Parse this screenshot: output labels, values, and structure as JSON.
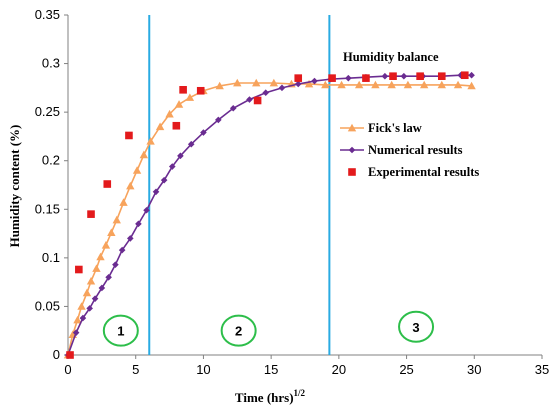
{
  "chart_data": {
    "type": "line",
    "xlabel": "Time (hrs)",
    "xlabel_sup": "1/2",
    "ylabel": "Humidity content (%)",
    "xlim": [
      0,
      35
    ],
    "ylim": [
      0,
      0.35
    ],
    "x_ticks": [
      "0",
      "5",
      "10",
      "15",
      "20",
      "25",
      "30",
      "35"
    ],
    "y_ticks": [
      "0",
      "0.05",
      "0.1",
      "0.15",
      "0.2",
      "0.25",
      "0.3",
      "0.35"
    ],
    "grid": false,
    "legend_position": "right",
    "annotation": "Humidity balance",
    "zones": [
      {
        "label": "1",
        "x_center": 3.9,
        "y_center": 0.023
      },
      {
        "label": "2",
        "x_center": 12.6,
        "y_center": 0.023
      },
      {
        "label": "3",
        "x_center": 25.7,
        "y_center": 0.027
      }
    ],
    "boundaries": [
      6.0,
      19.3
    ],
    "series": [
      {
        "name": "Fick's law",
        "marker": "triangle",
        "color": "#F7A35C",
        "x": [
          0,
          0.35,
          0.7,
          1.0,
          1.4,
          1.7,
          2.1,
          2.4,
          2.8,
          3.2,
          3.6,
          4.1,
          4.6,
          5.1,
          5.6,
          6.1,
          6.8,
          7.5,
          8.2,
          9.0,
          10.0,
          11.2,
          12.5,
          13.9,
          15.2,
          16.5,
          17.8,
          19.0,
          20.2,
          21.5,
          22.7,
          23.9,
          25.1,
          26.3,
          27.6,
          28.8,
          29.8
        ],
        "y": [
          0,
          0.021,
          0.036,
          0.05,
          0.064,
          0.076,
          0.089,
          0.101,
          0.113,
          0.126,
          0.139,
          0.157,
          0.174,
          0.19,
          0.206,
          0.22,
          0.235,
          0.248,
          0.258,
          0.265,
          0.272,
          0.277,
          0.28,
          0.28,
          0.28,
          0.279,
          0.279,
          0.278,
          0.278,
          0.278,
          0.278,
          0.278,
          0.278,
          0.278,
          0.278,
          0.278,
          0.277
        ]
      },
      {
        "name": "Numerical results",
        "marker": "diamond",
        "color": "#6A2C91",
        "x": [
          0,
          0.6,
          1.1,
          1.6,
          2.0,
          2.5,
          3.0,
          3.5,
          4.0,
          4.6,
          5.2,
          5.8,
          6.5,
          7.1,
          7.7,
          8.3,
          9.1,
          10.0,
          11.1,
          12.2,
          13.4,
          14.6,
          15.8,
          17.0,
          18.2,
          19.4,
          20.7,
          22.0,
          23.4,
          24.8,
          26.2,
          27.6,
          29.0,
          29.8
        ],
        "y": [
          0,
          0.023,
          0.038,
          0.048,
          0.058,
          0.069,
          0.08,
          0.093,
          0.108,
          0.12,
          0.135,
          0.149,
          0.168,
          0.18,
          0.194,
          0.205,
          0.217,
          0.229,
          0.242,
          0.254,
          0.263,
          0.27,
          0.275,
          0.279,
          0.282,
          0.284,
          0.285,
          0.286,
          0.287,
          0.287,
          0.287,
          0.287,
          0.288,
          0.288
        ]
      },
      {
        "name": "Experimental results",
        "marker": "square",
        "color": "#E31A1C",
        "x": [
          0.15,
          0.8,
          1.7,
          2.9,
          4.5,
          8.0,
          8.5,
          9.8,
          14.0,
          17.0,
          19.5,
          22.0,
          24.0,
          26.0,
          27.6,
          29.3
        ],
        "y": [
          0.0,
          0.088,
          0.145,
          0.176,
          0.226,
          0.236,
          0.273,
          0.272,
          0.262,
          0.285,
          0.285,
          0.285,
          0.287,
          0.287,
          0.287,
          0.288
        ]
      }
    ]
  },
  "colors": {
    "boundary_line": "#29ABE2",
    "zone_circle": "#2DBE4A",
    "axis": "#808080"
  }
}
